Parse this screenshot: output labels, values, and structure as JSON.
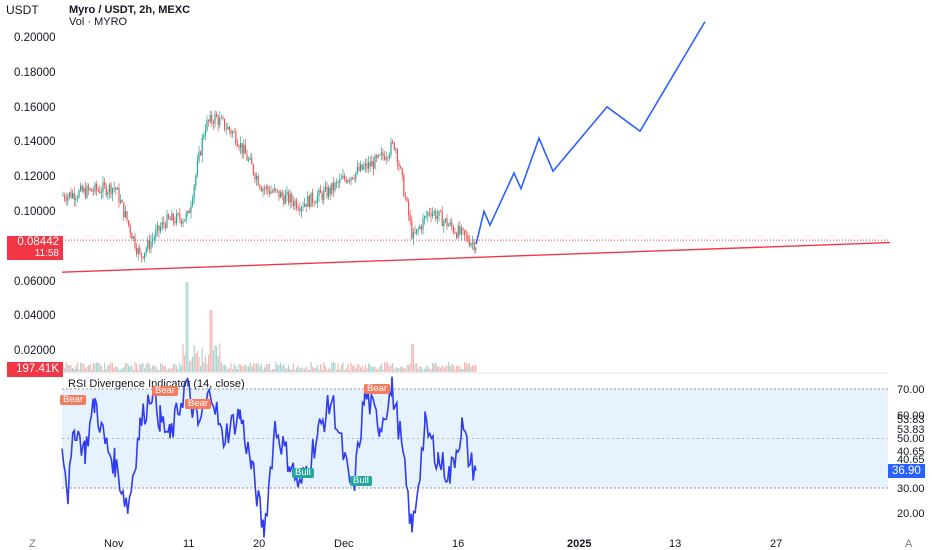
{
  "header": {
    "currency": "USDT",
    "symbol_line": "Myro / USDT, 2h, MEXC",
    "volume_line": "Vol · MYRO"
  },
  "price_axis": {
    "ticks": [
      0.2,
      0.18,
      0.16,
      0.14,
      0.12,
      0.1,
      0.06,
      0.04,
      0.02
    ],
    "tick_labels": [
      "0.20000",
      "0.18000",
      "0.16000",
      "0.14000",
      "0.12000",
      "0.10000",
      "0.06000",
      "0.04000",
      "0.02000"
    ]
  },
  "last_price": {
    "value": "0.08442",
    "countdown": "11:58",
    "color": "#f23645"
  },
  "volume_last": "197.41K",
  "rsi": {
    "title": "RSI Divergence Indicator (14, close)",
    "levels": [
      70,
      30
    ],
    "axis_labels": [
      "70.00",
      "60.00",
      "53.83",
      "53.83",
      "50.00",
      "40.65",
      "40.65",
      "30.00",
      "20.00"
    ],
    "current": "36.90",
    "divergence_labels": [
      {
        "text": "Bear",
        "type": "bear"
      },
      {
        "text": "Bear",
        "type": "bear"
      },
      {
        "text": "Bear",
        "type": "bear"
      },
      {
        "text": "Bear",
        "type": "bear"
      },
      {
        "text": "Bull",
        "type": "bull"
      },
      {
        "text": "Bull",
        "type": "bull"
      }
    ]
  },
  "time_axis": {
    "labels": [
      "Nov",
      "11",
      "20",
      "Dec",
      "16",
      "2025",
      "13",
      "27"
    ],
    "left_button": "Z",
    "right_button": "A"
  },
  "colors": {
    "up": "#26a69a",
    "down": "#ef5350",
    "projection": "#2962ff",
    "trendline": "#f23645",
    "rsi_line": "#2f3cf0",
    "rsi_fill": "#e6f2fd"
  },
  "chart_data": {
    "type": "line",
    "title": "Myro / USDT, 2h, MEXC",
    "series": [
      {
        "name": "Myro / USDT",
        "x_anchor": [
          "Oct 27",
          "Nov 1",
          "Nov 5",
          "Nov 8",
          "Nov 11",
          "Nov 12",
          "Nov 13",
          "Nov 16",
          "Nov 20",
          "Nov 24",
          "Nov 28",
          "Dec 2",
          "Dec 6",
          "Dec 9",
          "Dec 11",
          "Dec 13",
          "Dec 16",
          "Dec 18"
        ],
        "y": [
          0.11,
          0.115,
          0.075,
          0.095,
          0.098,
          0.15,
          0.155,
          0.145,
          0.115,
          0.105,
          0.112,
          0.12,
          0.13,
          0.14,
          0.085,
          0.102,
          0.088,
          0.082
        ]
      },
      {
        "name": "Projection",
        "x": [
          "Dec 18",
          "Dec 19",
          "Dec 20",
          "Dec 23",
          "Dec 24",
          "Dec 27",
          "Dec 29",
          "Jan 5",
          "Jan 10",
          "Jan 16"
        ],
        "y": [
          0.082,
          0.101,
          0.093,
          0.123,
          0.114,
          0.143,
          0.124,
          0.161,
          0.147,
          0.21
        ]
      },
      {
        "name": "Trendline",
        "x": [
          "Oct 27",
          "Feb 3"
        ],
        "y": [
          0.066,
          0.083
        ]
      }
    ],
    "volume_peak_label": "197.41K",
    "rsi_range": [
      10,
      75
    ],
    "ylim": [
      0,
      0.21
    ],
    "grid": false
  }
}
